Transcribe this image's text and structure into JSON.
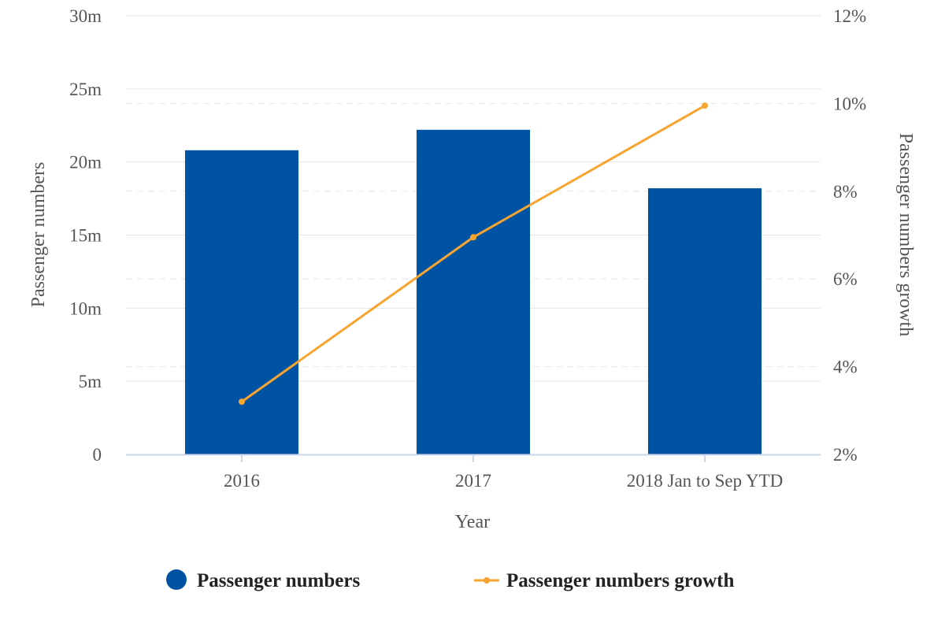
{
  "chart_data": {
    "type": "bar",
    "categories": [
      "2016",
      "2017",
      "2018 Jan to Sep YTD"
    ],
    "xlabel": "Year",
    "ylabel": "Passenger numbers",
    "y2label": "Passenger numbers growth",
    "ylim": [
      0,
      30
    ],
    "y2lim": [
      2,
      12
    ],
    "yticks": [
      "0",
      "5m",
      "10m",
      "15m",
      "20m",
      "25m",
      "30m"
    ],
    "y2ticks": [
      "2%",
      "4%",
      "6%",
      "8%",
      "10%",
      "12%"
    ],
    "grid": true,
    "legend_position": "bottom-center",
    "series": [
      {
        "name": "Passenger numbers",
        "type": "bar",
        "axis": "left",
        "unit": "m",
        "color": "#0053a3",
        "values": [
          20.8,
          22.2,
          18.2
        ]
      },
      {
        "name": "Passenger numbers growth",
        "type": "line",
        "axis": "right",
        "unit": "%",
        "color": "#f7a430",
        "values": [
          3.2,
          6.95,
          9.95
        ]
      }
    ]
  }
}
